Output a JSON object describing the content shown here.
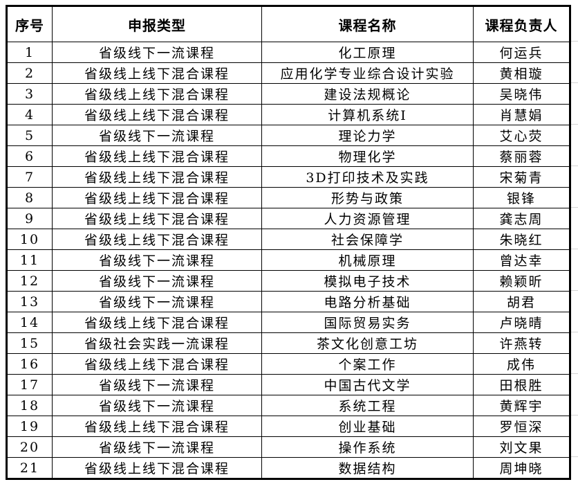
{
  "headers": [
    "序号",
    "申报类型",
    "课程名称",
    "课程负责人"
  ],
  "rows": [
    [
      "1",
      "省级线下一流课程",
      "化工原理",
      "何运兵"
    ],
    [
      "2",
      "省级线上线下混合课程",
      "应用化学专业综合设计实验",
      "黄相璇"
    ],
    [
      "3",
      "省级线上线下混合课程",
      "建设法规概论",
      "吴晓伟"
    ],
    [
      "4",
      "省级线上线下混合课程",
      "计算机系统I",
      "肖慧娟"
    ],
    [
      "5",
      "省级线下一流课程",
      "理论力学",
      "艾心荧"
    ],
    [
      "6",
      "省级线上线下混合课程",
      "物理化学",
      "蔡丽蓉"
    ],
    [
      "7",
      "省级线上线下混合课程",
      "3D打印技术及实践",
      "宋菊青"
    ],
    [
      "8",
      "省级线上线下混合课程",
      "形势与政策",
      "银锋"
    ],
    [
      "9",
      "省级线上线下混合课程",
      "人力资源管理",
      "龚志周"
    ],
    [
      "10",
      "省级线上线下混合课程",
      "社会保障学",
      "朱晓红"
    ],
    [
      "11",
      "省级线下一流课程",
      "机械原理",
      "曾达幸"
    ],
    [
      "12",
      "省级线下一流课程",
      "模拟电子技术",
      "赖颖昕"
    ],
    [
      "13",
      "省级线下一流课程",
      "电路分析基础",
      "胡君"
    ],
    [
      "14",
      "省级线上线下混合课程",
      "国际贸易实务",
      "卢晓晴"
    ],
    [
      "15",
      "省级社会实践一流课程",
      "茶文化创意工坊",
      "许燕转"
    ],
    [
      "16",
      "省级线上线下混合课程",
      "个案工作",
      "成伟"
    ],
    [
      "17",
      "省级线下一流课程",
      "中国古代文学",
      "田根胜"
    ],
    [
      "18",
      "省级线下一流课程",
      "系统工程",
      "黄辉宇"
    ],
    [
      "19",
      "省级线上线下混合课程",
      "创业基础",
      "罗恒深"
    ],
    [
      "20",
      "省级线下一流课程",
      "操作系统",
      "刘文果"
    ],
    [
      "21",
      "省级线上线下混合课程",
      "数据结构",
      "周坤晓"
    ]
  ]
}
